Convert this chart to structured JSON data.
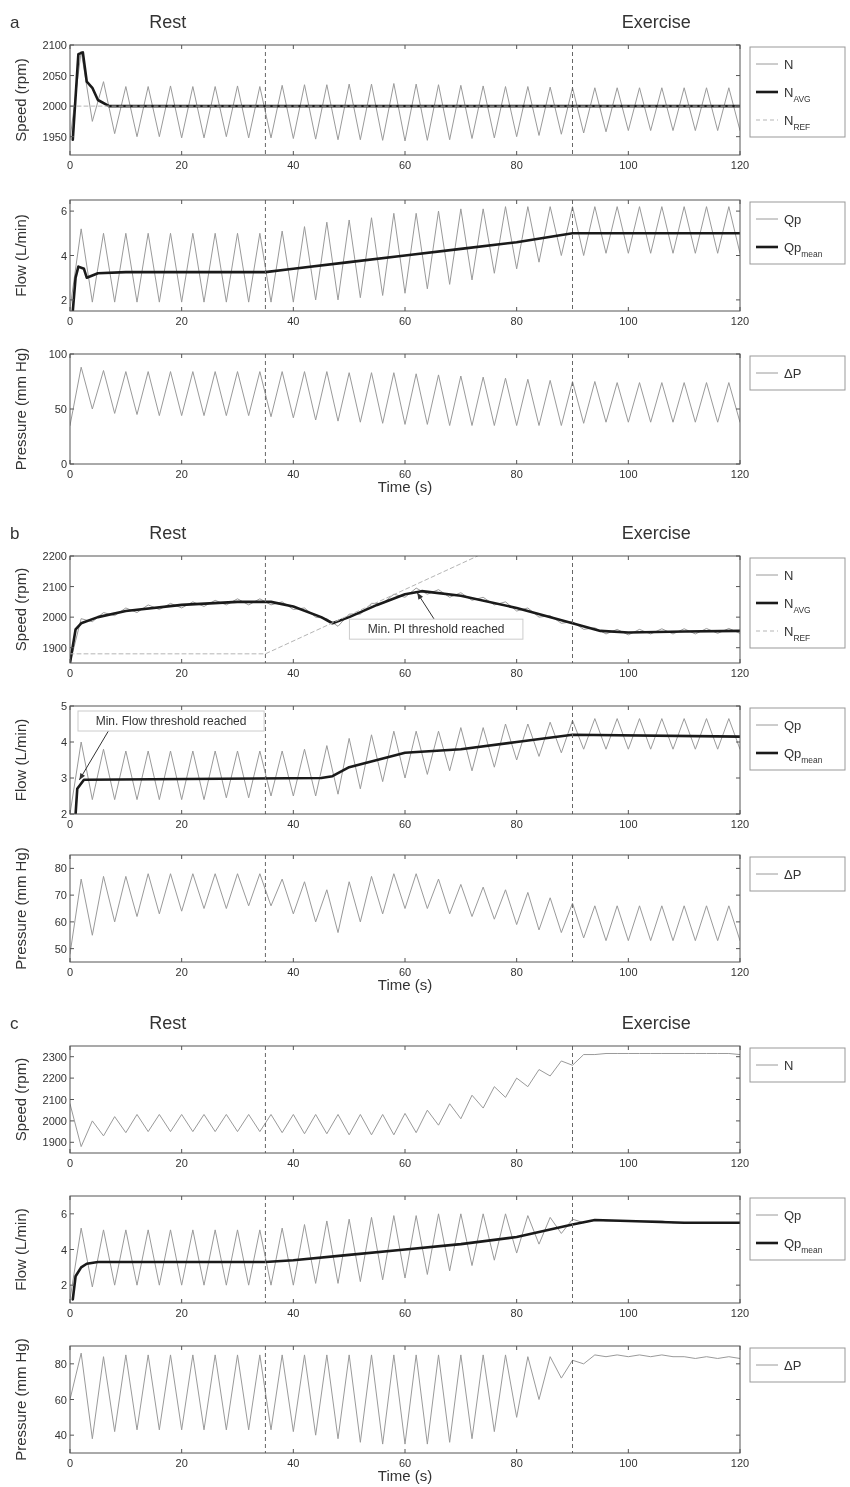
{
  "chart_data": [
    {
      "type": "line",
      "title": "a",
      "annotations": [
        "Rest",
        "Exercise"
      ],
      "ylabel": "Speed (rpm)",
      "legend": "right",
      "xlim": [
        0,
        120
      ],
      "xticks": [
        0,
        20,
        40,
        60,
        80,
        100,
        120
      ],
      "ylim": [
        1920,
        2100
      ],
      "yticks": [
        1950,
        2000,
        2050,
        2100
      ],
      "x": [
        0,
        2,
        4,
        6,
        8,
        10,
        12,
        14,
        16,
        18,
        20,
        22,
        24,
        26,
        28,
        30,
        32,
        34,
        36,
        38,
        40,
        42,
        44,
        46,
        48,
        50,
        52,
        54,
        56,
        58,
        60,
        62,
        64,
        66,
        68,
        70,
        72,
        74,
        76,
        78,
        80,
        82,
        84,
        86,
        88,
        90,
        92,
        94,
        96,
        98,
        100,
        102,
        104,
        106,
        108,
        110,
        112,
        114,
        116,
        118,
        120
      ],
      "ref_lines": [
        {
          "axis": "x",
          "value": 35,
          "color": "#666666",
          "line_style": "dashed"
        },
        {
          "axis": "x",
          "value": 90,
          "color": "#666666",
          "line_style": "dashed"
        }
      ],
      "series": [
        {
          "name": "N",
          "color": "#9a9a9a",
          "values": [
            1945,
            2090,
            1975,
            2040,
            1955,
            2032,
            1950,
            2032,
            1950,
            2033,
            1948,
            2032,
            1948,
            2032,
            1950,
            2033,
            1948,
            2032,
            1948,
            2034,
            1947,
            2035,
            1946,
            2035,
            1945,
            2036,
            1945,
            2036,
            1944,
            2037,
            1943,
            2036,
            1944,
            2035,
            1945,
            2034,
            1947,
            2033,
            1948,
            2032,
            1950,
            2032,
            1952,
            2031,
            1954,
            2030,
            1956,
            2030,
            1958,
            2030,
            1960,
            2030,
            1960,
            2030,
            1960,
            2030,
            1960,
            2030,
            1960,
            2030,
            1960
          ]
        },
        {
          "name": "N$_{AVG}$",
          "color": "#1a1a1a",
          "x": [
            0.5,
            1.5,
            2.3,
            3,
            4,
            5,
            7,
            10,
            120
          ],
          "values": [
            1945,
            2085,
            2088,
            2040,
            2030,
            2010,
            2000,
            2000,
            2000
          ]
        },
        {
          "name": "N$_{REF}$",
          "color": "#b5b5b5",
          "line_style": "dashed",
          "x": [
            0,
            120
          ],
          "values": [
            2000,
            2000
          ]
        }
      ]
    },
    {
      "type": "line",
      "ylabel": "Flow (L/min)",
      "legend": "right",
      "xlim": [
        0,
        120
      ],
      "xticks": [
        0,
        20,
        40,
        60,
        80,
        100,
        120
      ],
      "ylim": [
        1.5,
        6.5
      ],
      "yticks": [
        2,
        4,
        6
      ],
      "x": [
        0,
        2,
        4,
        6,
        8,
        10,
        12,
        14,
        16,
        18,
        20,
        22,
        24,
        26,
        28,
        30,
        32,
        34,
        36,
        38,
        40,
        42,
        44,
        46,
        48,
        50,
        52,
        54,
        56,
        58,
        60,
        62,
        64,
        66,
        68,
        70,
        72,
        74,
        76,
        78,
        80,
        82,
        84,
        86,
        88,
        90,
        92,
        94,
        96,
        98,
        100,
        102,
        104,
        106,
        108,
        110,
        112,
        114,
        116,
        118,
        120
      ],
      "ref_lines": [
        {
          "axis": "x",
          "value": 35,
          "color": "#666666",
          "line_style": "dashed"
        },
        {
          "axis": "x",
          "value": 90,
          "color": "#666666",
          "line_style": "dashed"
        }
      ],
      "series": [
        {
          "name": "Qp",
          "color": "#9a9a9a",
          "values": [
            1.6,
            5.2,
            1.9,
            5.0,
            1.9,
            5.0,
            1.9,
            5.0,
            1.9,
            5.0,
            1.9,
            5.0,
            1.9,
            5.0,
            1.9,
            5.0,
            1.9,
            5.0,
            1.9,
            5.1,
            1.9,
            5.3,
            2.0,
            5.5,
            2.0,
            5.6,
            2.1,
            5.7,
            2.2,
            5.9,
            2.3,
            5.9,
            2.5,
            6.0,
            2.7,
            6.1,
            2.9,
            6.1,
            3.2,
            6.2,
            3.4,
            6.2,
            3.7,
            6.2,
            4.0,
            6.2,
            4.0,
            6.2,
            4.1,
            6.2,
            4.1,
            6.2,
            4.1,
            6.2,
            4.1,
            6.2,
            4.1,
            6.2,
            4.1,
            6.2,
            4.1
          ]
        },
        {
          "name": "Qp$_{mean}$",
          "color": "#1a1a1a",
          "x": [
            0.5,
            1,
            1.5,
            2.5,
            3,
            5,
            10,
            35,
            40,
            50,
            60,
            70,
            80,
            90,
            120
          ],
          "values": [
            1.5,
            3.0,
            3.5,
            3.4,
            3.0,
            3.2,
            3.25,
            3.25,
            3.4,
            3.7,
            4.0,
            4.3,
            4.6,
            5.0,
            5.0
          ]
        }
      ]
    },
    {
      "type": "line",
      "xlabel": "Time (s)",
      "ylabel": "Pressure (mm Hg)",
      "legend": "right",
      "xlim": [
        0,
        120
      ],
      "xticks": [
        0,
        20,
        40,
        60,
        80,
        100,
        120
      ],
      "ylim": [
        0,
        100
      ],
      "yticks": [
        0,
        50,
        100
      ],
      "x": [
        0,
        2,
        4,
        6,
        8,
        10,
        12,
        14,
        16,
        18,
        20,
        22,
        24,
        26,
        28,
        30,
        32,
        34,
        36,
        38,
        40,
        42,
        44,
        46,
        48,
        50,
        52,
        54,
        56,
        58,
        60,
        62,
        64,
        66,
        68,
        70,
        72,
        74,
        76,
        78,
        80,
        82,
        84,
        86,
        88,
        90,
        92,
        94,
        96,
        98,
        100,
        102,
        104,
        106,
        108,
        110,
        112,
        114,
        116,
        118,
        120
      ],
      "ref_lines": [
        {
          "axis": "x",
          "value": 35,
          "color": "#666666",
          "line_style": "dashed"
        },
        {
          "axis": "x",
          "value": 90,
          "color": "#666666",
          "line_style": "dashed"
        }
      ],
      "series": [
        {
          "name": "ΔP",
          "color": "#9a9a9a",
          "values": [
            35,
            88,
            50,
            85,
            46,
            84,
            45,
            84,
            44,
            84,
            44,
            84,
            44,
            84,
            44,
            84,
            44,
            84,
            43,
            84,
            42,
            84,
            40,
            84,
            39,
            83,
            38,
            83,
            37,
            83,
            36,
            82,
            36,
            81,
            35,
            80,
            35,
            79,
            35,
            78,
            35,
            77,
            35,
            76,
            35,
            75,
            37,
            75,
            38,
            74,
            38,
            74,
            38,
            74,
            38,
            74,
            38,
            74,
            38,
            74,
            38
          ]
        }
      ]
    },
    {
      "type": "line",
      "title": "b",
      "annotations": [
        "Rest",
        "Exercise",
        {
          "text": "Min. PI threshold reached",
          "x": 62,
          "y": 2085
        }
      ],
      "ylabel": "Speed (rpm)",
      "legend": "right",
      "xlim": [
        0,
        120
      ],
      "xticks": [
        0,
        20,
        40,
        60,
        80,
        100,
        120
      ],
      "ylim": [
        1850,
        2200
      ],
      "yticks": [
        1900,
        2000,
        2100,
        2200
      ],
      "x": [
        0,
        2,
        4,
        6,
        8,
        10,
        12,
        14,
        16,
        18,
        20,
        22,
        24,
        26,
        28,
        30,
        32,
        34,
        36,
        38,
        40,
        42,
        44,
        46,
        48,
        50,
        52,
        54,
        56,
        58,
        60,
        62,
        64,
        66,
        68,
        70,
        72,
        74,
        76,
        78,
        80,
        82,
        84,
        86,
        88,
        90,
        92,
        94,
        96,
        98,
        100,
        102,
        104,
        106,
        108,
        110,
        112,
        114,
        116,
        118,
        120
      ],
      "ref_lines": [
        {
          "axis": "x",
          "value": 35,
          "color": "#666666",
          "line_style": "dashed"
        },
        {
          "axis": "x",
          "value": 90,
          "color": "#666666",
          "line_style": "dashed"
        }
      ],
      "series": [
        {
          "name": "N",
          "color": "#9a9a9a",
          "values": [
            1850,
            1995,
            1985,
            2015,
            2005,
            2030,
            2015,
            2040,
            2025,
            2045,
            2030,
            2050,
            2035,
            2055,
            2040,
            2060,
            2040,
            2060,
            2040,
            2050,
            2025,
            2030,
            2000,
            1995,
            1970,
            2010,
            2010,
            2045,
            2045,
            2075,
            2065,
            2095,
            2075,
            2090,
            2065,
            2080,
            2055,
            2065,
            2040,
            2050,
            2020,
            2030,
            2000,
            2005,
            1980,
            1985,
            1960,
            1965,
            1945,
            1960,
            1942,
            1960,
            1945,
            1962,
            1945,
            1962,
            1945,
            1963,
            1947,
            1963,
            1947
          ]
        },
        {
          "name": "N$_{AVG}$",
          "color": "#1a1a1a",
          "x": [
            0,
            1,
            2,
            5,
            10,
            20,
            30,
            36,
            40,
            45,
            47,
            50,
            55,
            60,
            63,
            70,
            80,
            90,
            95,
            100,
            110,
            120
          ],
          "values": [
            1850,
            1960,
            1980,
            2000,
            2020,
            2040,
            2050,
            2050,
            2035,
            2000,
            1980,
            2000,
            2040,
            2075,
            2085,
            2070,
            2030,
            1980,
            1955,
            1950,
            1953,
            1955
          ]
        },
        {
          "name": "N$_{REF}$",
          "color": "#b5b5b5",
          "line_style": "dashed",
          "x": [
            0,
            35,
            73
          ],
          "values": [
            1880,
            1880,
            2200
          ]
        }
      ]
    },
    {
      "type": "line",
      "annotations": [
        {
          "text": "Min. Flow threshold reached",
          "x": 1.5,
          "y": 2.9
        }
      ],
      "ylabel": "Flow (L/min)",
      "legend": "right",
      "xlim": [
        0,
        120
      ],
      "xticks": [
        0,
        20,
        40,
        60,
        80,
        100,
        120
      ],
      "ylim": [
        2,
        5
      ],
      "yticks": [
        2,
        3,
        4,
        5
      ],
      "x": [
        0,
        2,
        4,
        6,
        8,
        10,
        12,
        14,
        16,
        18,
        20,
        22,
        24,
        26,
        28,
        30,
        32,
        34,
        36,
        38,
        40,
        42,
        44,
        46,
        48,
        50,
        52,
        54,
        56,
        58,
        60,
        62,
        64,
        66,
        68,
        70,
        72,
        74,
        76,
        78,
        80,
        82,
        84,
        86,
        88,
        90,
        92,
        94,
        96,
        98,
        100,
        102,
        104,
        106,
        108,
        110,
        112,
        114,
        116,
        118,
        120
      ],
      "ref_lines": [
        {
          "axis": "x",
          "value": 35,
          "color": "#666666",
          "line_style": "dashed"
        },
        {
          "axis": "x",
          "value": 90,
          "color": "#666666",
          "line_style": "dashed"
        }
      ],
      "series": [
        {
          "name": "Qp",
          "color": "#9a9a9a",
          "values": [
            2.0,
            4.0,
            2.4,
            3.8,
            2.4,
            3.75,
            2.4,
            3.75,
            2.4,
            3.75,
            2.4,
            3.75,
            2.4,
            3.75,
            2.45,
            3.75,
            2.45,
            3.75,
            2.5,
            3.75,
            2.5,
            3.8,
            2.5,
            3.9,
            2.55,
            4.1,
            2.7,
            4.2,
            2.9,
            4.3,
            3.0,
            4.3,
            3.1,
            4.3,
            3.2,
            4.4,
            3.2,
            4.4,
            3.3,
            4.5,
            3.5,
            4.5,
            3.6,
            4.55,
            3.7,
            4.6,
            3.8,
            4.65,
            3.8,
            4.65,
            3.8,
            4.65,
            3.8,
            4.65,
            3.8,
            4.65,
            3.8,
            4.65,
            3.8,
            4.65,
            3.8
          ]
        },
        {
          "name": "Qp$_{mean}$",
          "color": "#1a1a1a",
          "x": [
            1,
            1.3,
            2.5,
            45,
            47,
            50,
            55,
            60,
            70,
            80,
            90,
            120
          ],
          "values": [
            2.0,
            2.7,
            2.95,
            3.0,
            3.05,
            3.3,
            3.5,
            3.7,
            3.8,
            4.0,
            4.2,
            4.15
          ]
        }
      ]
    },
    {
      "type": "line",
      "xlabel": "Time (s)",
      "ylabel": "Pressure (mm Hg)",
      "legend": "right",
      "xlim": [
        0,
        120
      ],
      "xticks": [
        0,
        20,
        40,
        60,
        80,
        100,
        120
      ],
      "ylim": [
        45,
        85
      ],
      "yticks": [
        50,
        60,
        70,
        80
      ],
      "x": [
        0,
        2,
        4,
        6,
        8,
        10,
        12,
        14,
        16,
        18,
        20,
        22,
        24,
        26,
        28,
        30,
        32,
        34,
        36,
        38,
        40,
        42,
        44,
        46,
        48,
        50,
        52,
        54,
        56,
        58,
        60,
        62,
        64,
        66,
        68,
        70,
        72,
        74,
        76,
        78,
        80,
        82,
        84,
        86,
        88,
        90,
        92,
        94,
        96,
        98,
        100,
        102,
        104,
        106,
        108,
        110,
        112,
        114,
        116,
        118,
        120
      ],
      "ref_lines": [
        {
          "axis": "x",
          "value": 35,
          "color": "#666666",
          "line_style": "dashed"
        },
        {
          "axis": "x",
          "value": 90,
          "color": "#666666",
          "line_style": "dashed"
        }
      ],
      "series": [
        {
          "name": "ΔP",
          "color": "#9a9a9a",
          "values": [
            48,
            76,
            55,
            77,
            60,
            77,
            62,
            78,
            63,
            78,
            64,
            78,
            65,
            78,
            65,
            78,
            66,
            78,
            66,
            76,
            63,
            75,
            60,
            72,
            56,
            75,
            60,
            77,
            63,
            78,
            65,
            78,
            65,
            76,
            63,
            74,
            62,
            73,
            61,
            72,
            59,
            71,
            57,
            69,
            56,
            67,
            54,
            66,
            53,
            66,
            53,
            66,
            53,
            66,
            53,
            66,
            53,
            66,
            53,
            66,
            53
          ]
        }
      ]
    },
    {
      "type": "line",
      "title": "c",
      "annotations": [
        "Rest",
        "Exercise"
      ],
      "ylabel": "Speed (rpm)",
      "legend": "right",
      "xlim": [
        0,
        120
      ],
      "xticks": [
        0,
        20,
        40,
        60,
        80,
        100,
        120
      ],
      "ylim": [
        1850,
        2350
      ],
      "yticks": [
        1900,
        2000,
        2100,
        2200,
        2300
      ],
      "x": [
        0,
        2,
        4,
        6,
        8,
        10,
        12,
        14,
        16,
        18,
        20,
        22,
        24,
        26,
        28,
        30,
        32,
        34,
        36,
        38,
        40,
        42,
        44,
        46,
        48,
        50,
        52,
        54,
        56,
        58,
        60,
        62,
        64,
        66,
        68,
        70,
        72,
        74,
        76,
        78,
        80,
        82,
        84,
        86,
        88,
        90,
        92,
        94,
        96,
        98,
        100,
        102,
        104,
        106,
        108,
        110,
        112,
        114,
        116,
        118,
        120
      ],
      "ref_lines": [
        {
          "axis": "x",
          "value": 35,
          "color": "#666666",
          "line_style": "dashed"
        },
        {
          "axis": "x",
          "value": 90,
          "color": "#666666",
          "line_style": "dashed"
        }
      ],
      "series": [
        {
          "name": "N",
          "color": "#9a9a9a",
          "values": [
            2080,
            1880,
            2000,
            1930,
            2020,
            1945,
            2030,
            1950,
            2030,
            1950,
            2030,
            1950,
            2030,
            1950,
            2030,
            1950,
            2030,
            1950,
            2030,
            1945,
            2030,
            1940,
            2030,
            1940,
            2030,
            1935,
            2030,
            1935,
            2030,
            1935,
            2035,
            1945,
            2050,
            1980,
            2080,
            2010,
            2120,
            2060,
            2160,
            2110,
            2200,
            2160,
            2240,
            2210,
            2280,
            2260,
            2310,
            2310,
            2315,
            2315,
            2315,
            2315,
            2315,
            2315,
            2315,
            2315,
            2315,
            2315,
            2315,
            2315,
            2310
          ]
        }
      ]
    },
    {
      "type": "line",
      "ylabel": "Flow (L/min)",
      "legend": "right",
      "xlim": [
        0,
        120
      ],
      "xticks": [
        0,
        20,
        40,
        60,
        80,
        100,
        120
      ],
      "ylim": [
        1,
        7
      ],
      "yticks": [
        2,
        4,
        6
      ],
      "x": [
        0,
        2,
        4,
        6,
        8,
        10,
        12,
        14,
        16,
        18,
        20,
        22,
        24,
        26,
        28,
        30,
        32,
        34,
        36,
        38,
        40,
        42,
        44,
        46,
        48,
        50,
        52,
        54,
        56,
        58,
        60,
        62,
        64,
        66,
        68,
        70,
        72,
        74,
        76,
        78,
        80,
        82,
        84,
        86,
        88,
        90,
        92,
        94,
        96,
        98,
        100,
        102,
        104,
        106,
        108,
        110,
        112,
        114,
        116,
        118,
        120
      ],
      "ref_lines": [
        {
          "axis": "x",
          "value": 35,
          "color": "#666666",
          "line_style": "dashed"
        },
        {
          "axis": "x",
          "value": 90,
          "color": "#666666",
          "line_style": "dashed"
        }
      ],
      "series": [
        {
          "name": "Qp",
          "color": "#9a9a9a",
          "values": [
            1.2,
            5.2,
            1.9,
            5.1,
            2.0,
            5.1,
            2.0,
            5.1,
            2.0,
            5.1,
            2.0,
            5.1,
            2.0,
            5.1,
            2.0,
            5.1,
            2.0,
            5.1,
            2.0,
            5.2,
            2.0,
            5.4,
            2.1,
            5.6,
            2.1,
            5.7,
            2.2,
            5.8,
            2.3,
            5.9,
            2.4,
            5.9,
            2.6,
            6.0,
            2.8,
            6.0,
            3.1,
            6.0,
            3.4,
            6.0,
            3.8,
            5.9,
            4.3,
            5.8,
            4.9,
            5.7,
            5.5,
            5.65,
            5.6,
            5.6,
            5.6,
            5.6,
            5.6,
            5.6,
            5.5,
            5.5,
            5.5,
            5.5,
            5.5,
            5.5,
            5.5
          ]
        },
        {
          "name": "Qp$_{mean}$",
          "color": "#1a1a1a",
          "x": [
            0.5,
            1,
            2,
            3,
            5,
            35,
            40,
            50,
            60,
            70,
            80,
            90,
            94,
            100,
            110,
            120
          ],
          "values": [
            1.2,
            2.5,
            3.0,
            3.2,
            3.3,
            3.3,
            3.4,
            3.7,
            4.0,
            4.3,
            4.7,
            5.4,
            5.65,
            5.6,
            5.5,
            5.5
          ]
        }
      ]
    },
    {
      "type": "line",
      "xlabel": "Time (s)",
      "ylabel": "Pressure (mm Hg)",
      "legend": "right",
      "xlim": [
        0,
        120
      ],
      "xticks": [
        0,
        20,
        40,
        60,
        80,
        100,
        120
      ],
      "ylim": [
        30,
        90
      ],
      "yticks": [
        40,
        60,
        80
      ],
      "x": [
        0,
        2,
        4,
        6,
        8,
        10,
        12,
        14,
        16,
        18,
        20,
        22,
        24,
        26,
        28,
        30,
        32,
        34,
        36,
        38,
        40,
        42,
        44,
        46,
        48,
        50,
        52,
        54,
        56,
        58,
        60,
        62,
        64,
        66,
        68,
        70,
        72,
        74,
        76,
        78,
        80,
        82,
        84,
        86,
        88,
        90,
        92,
        94,
        96,
        98,
        100,
        102,
        104,
        106,
        108,
        110,
        112,
        114,
        116,
        118,
        120
      ],
      "ref_lines": [
        {
          "axis": "x",
          "value": 35,
          "color": "#666666",
          "line_style": "dashed"
        },
        {
          "axis": "x",
          "value": 90,
          "color": "#666666",
          "line_style": "dashed"
        }
      ],
      "series": [
        {
          "name": "ΔP",
          "color": "#9a9a9a",
          "values": [
            60,
            86,
            38,
            84,
            42,
            85,
            43,
            85,
            43,
            85,
            43,
            85,
            43,
            85,
            43,
            85,
            43,
            85,
            43,
            85,
            42,
            85,
            40,
            85,
            38,
            85,
            36,
            85,
            35,
            85,
            35,
            85,
            35,
            85,
            36,
            85,
            38,
            85,
            42,
            85,
            50,
            84,
            60,
            84,
            72,
            82,
            80,
            85,
            84,
            85,
            84,
            85,
            84,
            85,
            84,
            84,
            83,
            84,
            83,
            84,
            83
          ]
        }
      ]
    }
  ]
}
